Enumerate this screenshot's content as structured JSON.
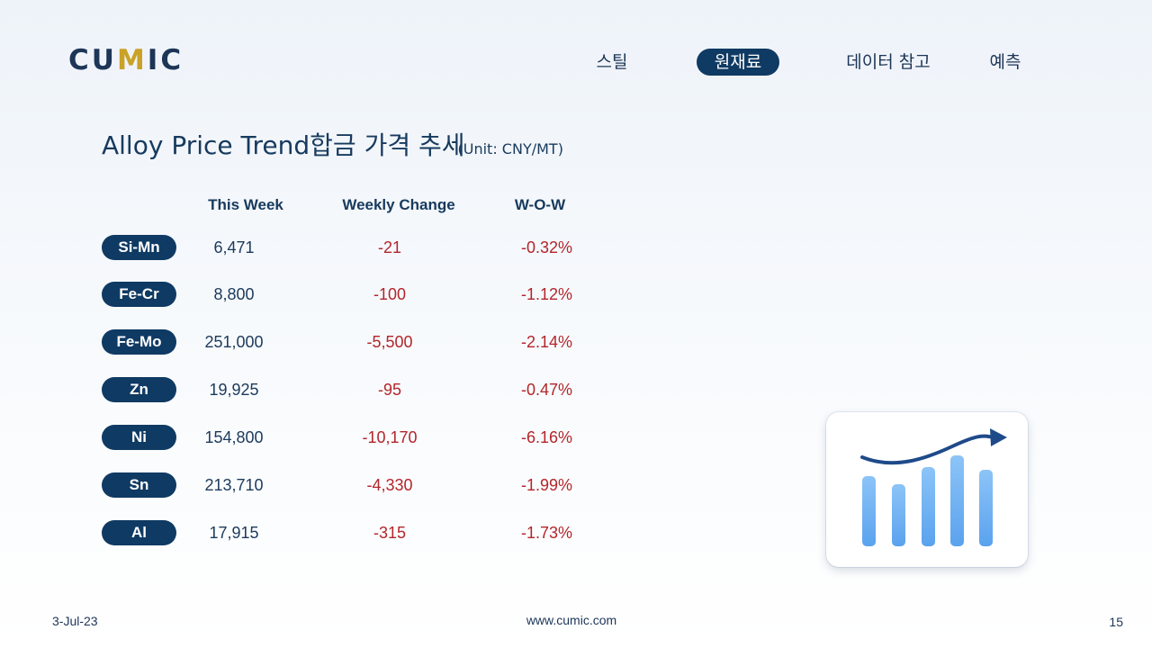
{
  "brand": {
    "logo_pre": "CU",
    "logo_accent": "M",
    "logo_post": "IC"
  },
  "nav": {
    "items": [
      {
        "label": "스틸"
      },
      {
        "label": "원재료"
      },
      {
        "label": "데이터 참고"
      },
      {
        "label": "예측"
      }
    ],
    "active": "원재료"
  },
  "slide": {
    "title": "Alloy Price Trend합금 가격 추세",
    "unit": "(Unit: CNY/MT)"
  },
  "table": {
    "headers": [
      "This Week",
      "Weekly Change",
      "W-O-W"
    ],
    "rows": [
      {
        "name": "Si-Mn",
        "week": "6,471",
        "change": "-21",
        "wow": "-0.32%"
      },
      {
        "name": "Fe-Cr",
        "week": "8,800",
        "change": "-100",
        "wow": "-1.12%"
      },
      {
        "name": "Fe-Mo",
        "week": "251,000",
        "change": "-5,500",
        "wow": "-2.14%"
      },
      {
        "name": "Zn",
        "week": "19,925",
        "change": "-95",
        "wow": "-0.47%"
      },
      {
        "name": "Ni",
        "week": "154,800",
        "change": "-10,170",
        "wow": "-6.16%"
      },
      {
        "name": "Sn",
        "week": "213,710",
        "change": "-4,330",
        "wow": "-1.99%"
      },
      {
        "name": "Al",
        "week": "17,915",
        "change": "-315",
        "wow": "-1.73%"
      }
    ]
  },
  "illustration": {
    "icon": "trend-chart-icon",
    "bar_color": "#6fb1f3",
    "arrow_color": "#1f4a8a"
  },
  "footer": {
    "date": "3-Jul-23",
    "url": "www.cumic.com",
    "page": "15"
  },
  "colors": {
    "navy": "#0f3a63",
    "negative": "#b3262b",
    "accent": "#c9a227"
  }
}
